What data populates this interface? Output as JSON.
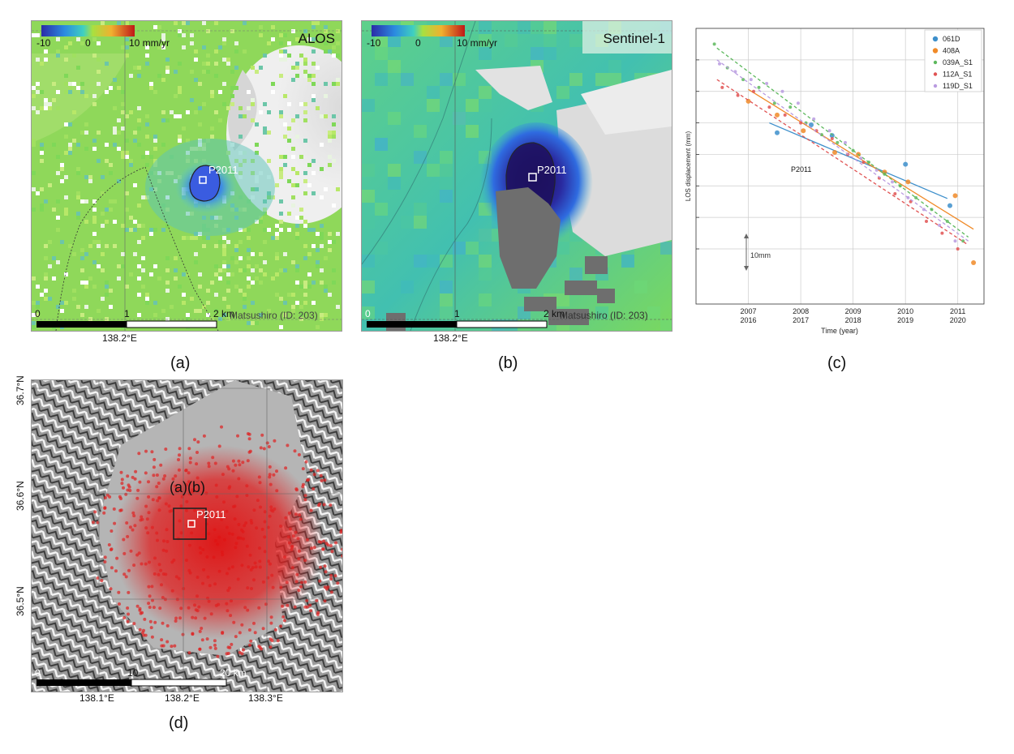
{
  "panel_a": {
    "caption": "(a)",
    "sensor": "ALOS",
    "colorbar": {
      "min": "-10",
      "mid": "0",
      "max": "10 mm/yr"
    },
    "point": "P2011",
    "scalebar": {
      "zero": "0",
      "one": "1",
      "two": "2 km"
    },
    "site": "Matsushiro (ID: 203)",
    "lon_tick": "138.2°E"
  },
  "panel_b": {
    "caption": "(b)",
    "sensor": "Sentinel-1",
    "colorbar": {
      "min": "-10",
      "mid": "0",
      "max": "10 mm/yr"
    },
    "point": "P2011",
    "scalebar": {
      "zero": "0",
      "one": "1",
      "two": "2 km"
    },
    "site": "Matsushiro (ID: 203)",
    "lon_tick": "138.2°E"
  },
  "panel_c": {
    "caption": "(c)",
    "chart_data": {
      "type": "scatter",
      "title": "",
      "xlabel": "Time (year)",
      "ylabel": "LOS displacement (mm)",
      "xlim": [
        2006.0,
        2011.5
      ],
      "ylim": [
        -47,
        23
      ],
      "x_ticks_top": [
        "2007",
        "2008",
        "2009",
        "2010",
        "2011"
      ],
      "x_ticks_bottom": [
        "2016",
        "2017",
        "2018",
        "2019",
        "2020"
      ],
      "x_tick_values": [
        2007,
        2008,
        2009,
        2010,
        2011
      ],
      "y_grid_values": [
        15,
        7,
        -1,
        -9,
        -17,
        -25,
        -33
      ],
      "point_label": "P2011",
      "scale_label": "10mm",
      "legend_position": "top-right",
      "series": [
        {
          "name": "061D",
          "color": "#3d8fcb",
          "x": [
            2007.55,
            2008.2,
            2008.6,
            2010.0,
            2010.85
          ],
          "y": [
            -3.5,
            -1.5,
            -4.2,
            -11.5,
            -22
          ],
          "trend": [
            [
              2007.4,
              -1.0
            ],
            [
              2010.8,
              -20.2
            ]
          ]
        },
        {
          "name": "408A",
          "color": "#f08a28",
          "x": [
            2007.0,
            2007.55,
            2008.05,
            2008.65,
            2009.1,
            2009.6,
            2010.05,
            2010.95,
            2011.3
          ],
          "y": [
            4.5,
            1.0,
            -3.0,
            -8.5,
            -9.0,
            -13.5,
            -16.0,
            -19.5,
            -36.5
          ],
          "trend": [
            [
              2007.0,
              7.5
            ],
            [
              2011.3,
              -28.0
            ]
          ]
        },
        {
          "name": "039A_S1",
          "color": "#5cb85c",
          "x": [
            2006.35,
            2006.6,
            2006.9,
            2007.2,
            2007.5,
            2007.8,
            2008.1,
            2008.4,
            2008.7,
            2009.0,
            2009.3,
            2009.6,
            2009.9,
            2010.2,
            2010.5,
            2010.8,
            2011.1
          ],
          "y": [
            19,
            13,
            10,
            8,
            4,
            3,
            -1,
            -4,
            -6,
            -8,
            -11,
            -14,
            -17,
            -20,
            -23,
            -26,
            -31
          ],
          "trend": [
            [
              2006.4,
              18.0
            ],
            [
              2011.2,
              -30.0
            ]
          ]
        },
        {
          "name": "112A_S1",
          "color": "#e05252",
          "x": [
            2006.5,
            2006.8,
            2007.1,
            2007.4,
            2007.7,
            2008.0,
            2008.3,
            2008.6,
            2008.9,
            2009.2,
            2009.5,
            2009.8,
            2010.1,
            2010.4,
            2010.7,
            2011.0
          ],
          "y": [
            8,
            6,
            7,
            3,
            1,
            -1,
            -3,
            -5,
            -9,
            -11,
            -15,
            -19,
            -21,
            -26,
            -29,
            -33
          ],
          "trend": [
            [
              2006.4,
              10.0
            ],
            [
              2011.2,
              -32.0
            ]
          ]
        },
        {
          "name": "119D_S1",
          "color": "#b99be0",
          "x": [
            2006.45,
            2006.75,
            2007.05,
            2007.35,
            2007.65,
            2007.95,
            2008.25,
            2008.55,
            2008.85,
            2009.15,
            2009.45,
            2009.75,
            2010.05,
            2010.35,
            2010.65,
            2010.95
          ],
          "y": [
            14,
            12,
            10,
            9,
            7,
            4,
            0,
            -3,
            -6,
            -10,
            -13,
            -16,
            -20,
            -23,
            -27,
            -31
          ],
          "trend": [
            [
              2006.4,
              15.0
            ],
            [
              2011.2,
              -31.0
            ]
          ]
        }
      ]
    }
  },
  "panel_d": {
    "caption": "(d)",
    "box_label": "(a)(b)",
    "point": "P2011",
    "lat_ticks": [
      "36.7°N",
      "36.6°N",
      "36.5°N"
    ],
    "lon_ticks": [
      "138.1°E",
      "138.2°E",
      "138.3°E"
    ],
    "scalebar": {
      "zero": "0",
      "ten": "10",
      "twenty": "20 km"
    }
  }
}
